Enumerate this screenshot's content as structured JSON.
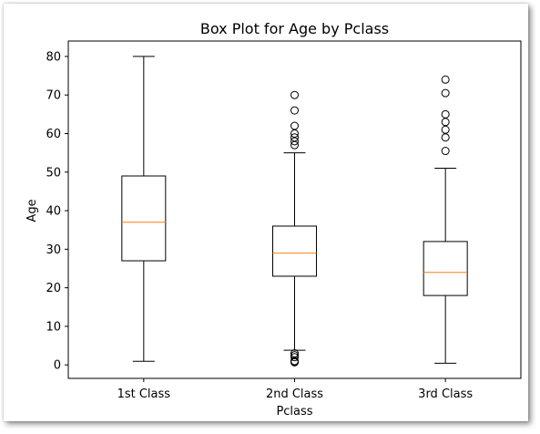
{
  "chart_data": {
    "type": "box",
    "title": "Box Plot for Age by Pclass",
    "xlabel": "Pclass",
    "ylabel": "Age",
    "ylim": [
      -3.5,
      84
    ],
    "yticks": [
      0,
      10,
      20,
      30,
      40,
      50,
      60,
      70,
      80
    ],
    "grid": false,
    "categories": [
      "1st Class",
      "2nd Class",
      "3rd Class"
    ],
    "boxes": [
      {
        "category": "1st Class",
        "whisker_low": 0.92,
        "q1": 27,
        "median": 37,
        "q3": 49,
        "whisker_high": 80,
        "outliers": []
      },
      {
        "category": "2nd Class",
        "whisker_low": 3.8,
        "q1": 23,
        "median": 29,
        "q3": 36,
        "whisker_high": 55,
        "outliers": [
          0.67,
          0.83,
          0.92,
          1,
          2,
          2.5,
          3,
          57,
          58,
          59,
          60,
          62,
          66,
          70
        ]
      },
      {
        "category": "3rd Class",
        "whisker_low": 0.42,
        "q1": 18,
        "median": 24,
        "q3": 32,
        "whisker_high": 51,
        "outliers": [
          55.5,
          59,
          61,
          63,
          65,
          70.5,
          74
        ]
      }
    ],
    "colors": {
      "box": "#000000",
      "median": "#ff7f0e",
      "outlier": "#000000"
    }
  }
}
